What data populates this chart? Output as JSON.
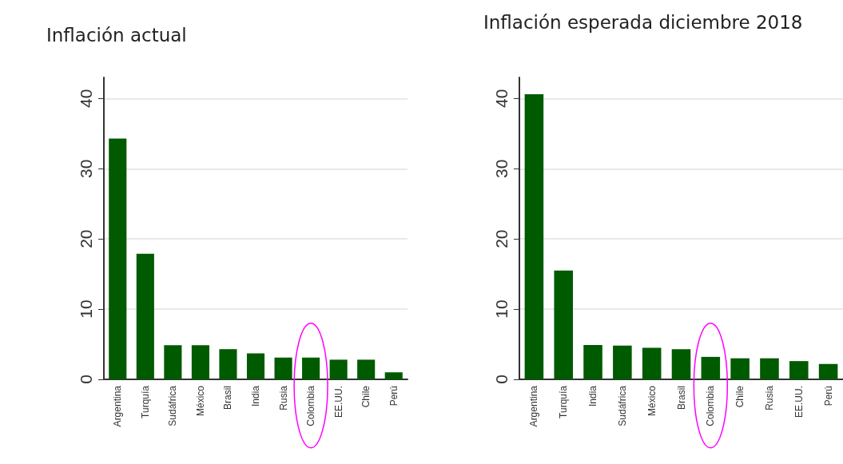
{
  "chart_data": [
    {
      "type": "bar",
      "title": "Inflación actual",
      "categories": [
        "Argentina",
        "Turquía",
        "Sudáfrica",
        "México",
        "Brasil",
        "India",
        "Rusia",
        "Colombia",
        "EE.UU.",
        "Chile",
        "Perú"
      ],
      "values": [
        34.3,
        17.9,
        4.85,
        4.85,
        4.3,
        3.7,
        3.1,
        3.1,
        2.8,
        2.8,
        1.0
      ],
      "color": "#005a00",
      "ylim": [
        0,
        43
      ],
      "yticks": [
        0,
        10,
        20,
        30,
        40
      ],
      "grid": "y"
    },
    {
      "type": "bar",
      "title": "Inflación esperada diciembre 2018",
      "categories": [
        "Argentina",
        "Turquía",
        "India",
        "Sudáfrica",
        "México",
        "Brasil",
        "Colombia",
        "Chile",
        "Rusia",
        "EE.UU.",
        "Perú"
      ],
      "values": [
        40.6,
        15.5,
        4.9,
        4.8,
        4.5,
        4.3,
        3.2,
        3.0,
        3.0,
        2.6,
        2.2
      ],
      "color": "#005a00",
      "ylim": [
        0,
        43
      ],
      "yticks": [
        0,
        10,
        20,
        30,
        40
      ],
      "grid": "y"
    }
  ]
}
